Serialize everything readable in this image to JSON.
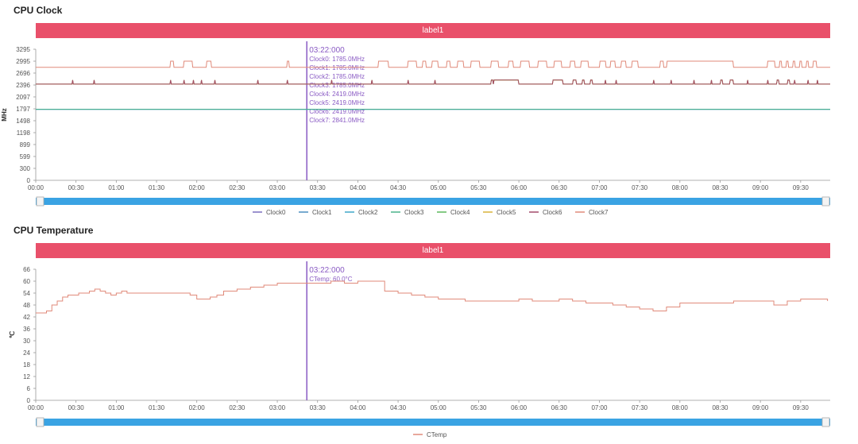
{
  "sections": [
    {
      "title": "CPU Clock"
    },
    {
      "title": "CPU Temperature"
    }
  ],
  "colors": {
    "label_bar": "#e9506a",
    "cursor": "#8a5bc4",
    "slider": "#3aa3e3"
  },
  "chart_data": [
    {
      "type": "line",
      "title": "CPU Clock",
      "band_label": "label1",
      "ylabel": "MHz",
      "yticks": [
        0,
        300,
        599,
        899,
        1198,
        1498,
        1797,
        2097,
        2396,
        2696,
        2995,
        3295
      ],
      "ylim": [
        0,
        3295
      ],
      "x_tick_labels": [
        "00:00",
        "00:30",
        "01:00",
        "01:30",
        "02:00",
        "02:30",
        "03:00",
        "03:30",
        "04:00",
        "04:30",
        "05:00",
        "05:30",
        "06:00",
        "06:30",
        "07:00",
        "07:30",
        "08:00",
        "08:30",
        "09:00",
        "09:30"
      ],
      "x_unit": "minutes",
      "x_range_minutes": [
        0,
        592
      ],
      "grid": true,
      "legend_position": "bottom",
      "cursor": {
        "time": "03:22:000",
        "readouts": [
          "Clock0: 1785.0MHz",
          "Clock1: 1785.0MHz",
          "Clock2: 1785.0MHz",
          "Clock3: 1785.0MHz",
          "Clock4: 2419.0MHz",
          "Clock5: 2419.0MHz",
          "Clock6: 2419.0MHz",
          "Clock7: 2841.0MHz"
        ]
      },
      "series": [
        {
          "name": "Clock0",
          "color": "#7a6fbf",
          "base": 1785,
          "kind": "flat"
        },
        {
          "name": "Clock1",
          "color": "#4a8fc0",
          "base": 1785,
          "kind": "flat"
        },
        {
          "name": "Clock2",
          "color": "#3fa7c9",
          "base": 1785,
          "kind": "flat"
        },
        {
          "name": "Clock3",
          "color": "#4bb28a",
          "base": 1785,
          "kind": "flat"
        },
        {
          "name": "Clock4",
          "color": "#5cb85c",
          "base": 2419,
          "kind": "spiky_small"
        },
        {
          "name": "Clock5",
          "color": "#d8b23a",
          "base": 2419,
          "kind": "spiky_small"
        },
        {
          "name": "Clock6",
          "color": "#a34a6a",
          "base": 2419,
          "kind": "spiky_small"
        },
        {
          "name": "Clock7",
          "color": "#e08a7a",
          "base": 2841,
          "kind": "spiky_large"
        }
      ],
      "spikes": {
        "clock7_blocks_minutes": [
          [
            100,
            103
          ],
          [
            110,
            117
          ],
          [
            127,
            131
          ],
          [
            187,
            189
          ],
          [
            255,
            263
          ],
          [
            277,
            284
          ],
          [
            288,
            291
          ],
          [
            295,
            300
          ],
          [
            306,
            309
          ],
          [
            314,
            319
          ],
          [
            324,
            331
          ],
          [
            339,
            345
          ],
          [
            352,
            356
          ],
          [
            361,
            368
          ],
          [
            374,
            381
          ],
          [
            386,
            392
          ],
          [
            398,
            402
          ],
          [
            406,
            412
          ],
          [
            420,
            425
          ],
          [
            428,
            432
          ],
          [
            436,
            440
          ],
          [
            444,
            449
          ],
          [
            465,
            468
          ],
          [
            470,
            520
          ],
          [
            545,
            551
          ],
          [
            554,
            556
          ],
          [
            559,
            561
          ],
          [
            564,
            566
          ],
          [
            569,
            571
          ],
          [
            574,
            576
          ],
          [
            579,
            582
          ]
        ],
        "clock7_peak": 2995,
        "small_blocks_minutes": [
          [
            27,
            28
          ],
          [
            43,
            44
          ],
          [
            100,
            101
          ],
          [
            110,
            111
          ],
          [
            117,
            118
          ],
          [
            123,
            124
          ],
          [
            133,
            134
          ],
          [
            165,
            166
          ],
          [
            187,
            188
          ],
          [
            220,
            221
          ],
          [
            250,
            251
          ],
          [
            277,
            278
          ],
          [
            297,
            298
          ],
          [
            339,
            341
          ],
          [
            341,
            360
          ],
          [
            385,
            393
          ],
          [
            400,
            403
          ],
          [
            407,
            409
          ],
          [
            413,
            415
          ],
          [
            424,
            425
          ],
          [
            432,
            433
          ],
          [
            460,
            461
          ],
          [
            473,
            474
          ],
          [
            490,
            491
          ],
          [
            503,
            504
          ],
          [
            510,
            512
          ],
          [
            517,
            520
          ],
          [
            530,
            531
          ],
          [
            545,
            546
          ],
          [
            552,
            554
          ],
          [
            560,
            562
          ],
          [
            565,
            566
          ],
          [
            575,
            576
          ],
          [
            582,
            583
          ]
        ],
        "small_peak": 2520
      }
    },
    {
      "type": "line",
      "title": "CPU Temperature",
      "band_label": "label1",
      "ylabel": "℃",
      "yticks": [
        0,
        6,
        12,
        18,
        24,
        30,
        36,
        42,
        48,
        54,
        60,
        66
      ],
      "ylim": [
        0,
        66
      ],
      "x_tick_labels": [
        "00:00",
        "00:30",
        "01:00",
        "01:30",
        "02:00",
        "02:30",
        "03:00",
        "03:30",
        "04:00",
        "04:30",
        "05:00",
        "05:30",
        "06:00",
        "06:30",
        "07:00",
        "07:30",
        "08:00",
        "08:30",
        "09:00",
        "09:30"
      ],
      "x_unit": "minutes",
      "x_range_minutes": [
        0,
        592
      ],
      "grid": true,
      "legend_position": "bottom",
      "cursor": {
        "time": "03:22:000",
        "readouts": [
          "CTemp: 60.0°C"
        ]
      },
      "series": [
        {
          "name": "CTemp",
          "color": "#e08a7a",
          "x": [
            0,
            4,
            8,
            12,
            16,
            20,
            24,
            28,
            32,
            36,
            40,
            44,
            48,
            52,
            56,
            60,
            64,
            68,
            72,
            76,
            80,
            90,
            100,
            110,
            115,
            120,
            125,
            130,
            135,
            140,
            150,
            160,
            170,
            180,
            190,
            200,
            210,
            220,
            230,
            240,
            250,
            260,
            270,
            280,
            290,
            300,
            310,
            320,
            330,
            340,
            350,
            360,
            370,
            380,
            390,
            400,
            410,
            420,
            430,
            440,
            450,
            460,
            470,
            480,
            490,
            500,
            510,
            520,
            530,
            540,
            550,
            560,
            570,
            580,
            590
          ],
          "y": [
            44,
            44,
            45,
            48,
            50,
            52,
            53,
            53,
            54,
            54,
            55,
            56,
            55,
            54,
            53,
            54,
            55,
            54,
            54,
            54,
            54,
            54,
            54,
            54,
            53,
            51,
            51,
            52,
            53,
            55,
            56,
            57,
            58,
            59,
            59,
            59,
            59,
            60,
            59,
            60,
            60,
            55,
            54,
            53,
            52,
            51,
            51,
            50,
            50,
            50,
            50,
            51,
            50,
            50,
            51,
            50,
            49,
            49,
            48,
            47,
            46,
            45,
            47,
            49,
            49,
            49,
            49,
            50,
            50,
            50,
            48,
            50,
            51,
            51,
            50
          ]
        }
      ]
    }
  ]
}
